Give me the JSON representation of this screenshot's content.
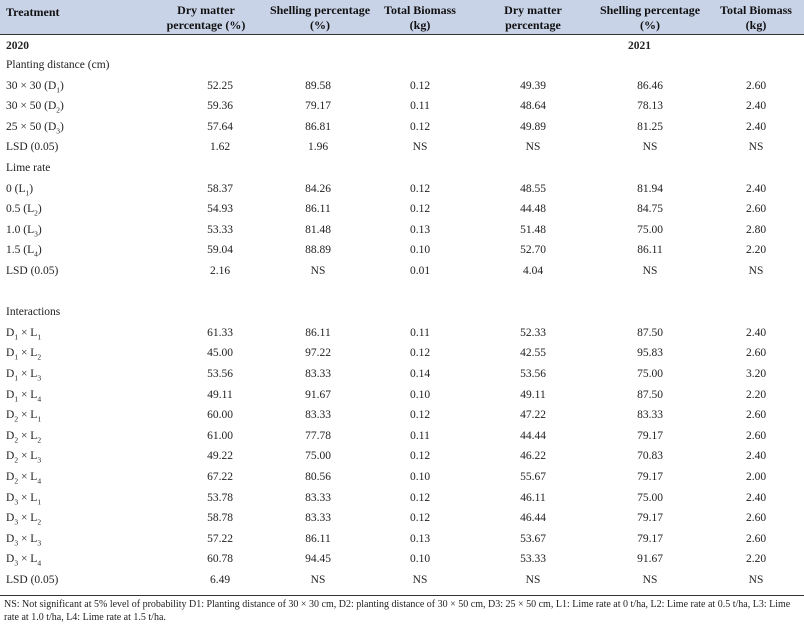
{
  "header": {
    "treatment": "Treatment",
    "dm1": "Dry matter percentage (%)",
    "sh1": "Shelling percentage (%)",
    "tb1": "Total  Biomass (kg)",
    "dm2": "Dry matter percentage",
    "sh2": "Shelling percentage (%)",
    "tb2": "Total Biomass (kg)"
  },
  "years": {
    "y1": "2020",
    "y2": "2021"
  },
  "rows": [
    {
      "type": "section",
      "label": "Planting distance (cm)"
    },
    {
      "label": "30 × 30 (D",
      "sub": "1",
      "tail": ")",
      "v": [
        "52.25",
        "89.58",
        "0.12",
        "49.39",
        "86.46",
        "2.60"
      ]
    },
    {
      "label": "30 × 50 (D",
      "sub": "2",
      "tail": ")",
      "v": [
        "59.36",
        "79.17",
        "0.11",
        "48.64",
        "78.13",
        "2.40"
      ]
    },
    {
      "label": "25 × 50 (D",
      "sub": "3",
      "tail": ")",
      "v": [
        "57.64",
        "86.81",
        "0.12",
        "49.89",
        "81.25",
        "2.40"
      ]
    },
    {
      "label": "LSD (0.05)",
      "v": [
        "1.62",
        "1.96",
        "NS",
        "NS",
        "NS",
        "NS"
      ]
    },
    {
      "type": "section",
      "label": "Lime rate"
    },
    {
      "label": "0 (L",
      "sub": "1",
      "tail": ")",
      "v": [
        "58.37",
        "84.26",
        "0.12",
        "48.55",
        "81.94",
        "2.40"
      ]
    },
    {
      "label": "0.5 (L",
      "sub": "2",
      "tail": ")",
      "v": [
        "54.93",
        "86.11",
        "0.12",
        "44.48",
        "84.75",
        "2.60"
      ]
    },
    {
      "label": "1.0 (L",
      "sub": "3",
      "tail": ")",
      "v": [
        "53.33",
        "81.48",
        "0.13",
        "51.48",
        "75.00",
        "2.80"
      ]
    },
    {
      "label": "1.5 (L",
      "sub": "4",
      "tail": ")",
      "v": [
        "59.04",
        "88.89",
        "0.10",
        "52.70",
        "86.11",
        "2.20"
      ]
    },
    {
      "label": "LSD (0.05)",
      "v": [
        "2.16",
        "NS",
        "0.01",
        "4.04",
        "NS",
        "NS"
      ]
    },
    {
      "type": "blank"
    },
    {
      "type": "section",
      "label": "Interactions"
    },
    {
      "label": "D",
      "sub": "1",
      "mid": " × L",
      "sub2": "1",
      "v": [
        "61.33",
        "86.11",
        "0.11",
        "52.33",
        "87.50",
        "2.40"
      ]
    },
    {
      "label": "D",
      "sub": "1",
      "mid": " × L",
      "sub2": "2",
      "v": [
        "45.00",
        "97.22",
        "0.12",
        "42.55",
        "95.83",
        "2.60"
      ]
    },
    {
      "label": "D",
      "sub": "1",
      "mid": " × L",
      "sub2": "3",
      "v": [
        "53.56",
        "83.33",
        "0.14",
        "53.56",
        "75.00",
        "3.20"
      ]
    },
    {
      "label": "D",
      "sub": "1",
      "mid": " × L",
      "sub2": "4",
      "v": [
        "49.11",
        "91.67",
        "0.10",
        "49.11",
        "87.50",
        "2.20"
      ]
    },
    {
      "label": "D",
      "sub": "2",
      "mid": " × L",
      "sub2": "1",
      "v": [
        "60.00",
        "83.33",
        "0.12",
        "47.22",
        "83.33",
        "2.60"
      ]
    },
    {
      "label": "D",
      "sub": "2",
      "mid": " × L",
      "sub2": "2",
      "v": [
        "61.00",
        "77.78",
        "0.11",
        "44.44",
        "79.17",
        "2.60"
      ]
    },
    {
      "label": "D",
      "sub": "2",
      "mid": " × L",
      "sub2": "3",
      "v": [
        "49.22",
        "75.00",
        "0.12",
        "46.22",
        "70.83",
        "2.40"
      ]
    },
    {
      "label": "D",
      "sub": "2",
      "mid": " × L",
      "sub2": "4",
      "v": [
        "67.22",
        "80.56",
        "0.10",
        "55.67",
        "79.17",
        "2.00"
      ]
    },
    {
      "label": "D",
      "sub": "3",
      "mid": " × L",
      "sub2": "1",
      "v": [
        "53.78",
        "83.33",
        "0.12",
        "46.11",
        "75.00",
        "2.40"
      ]
    },
    {
      "label": "D",
      "sub": "3",
      "mid": " × L",
      "sub2": "2",
      "v": [
        "58.78",
        "83.33",
        "0.12",
        "46.44",
        "79.17",
        "2.60"
      ]
    },
    {
      "label": "D",
      "sub": "3",
      "mid": " × L",
      "sub2": "3",
      "v": [
        "57.22",
        "86.11",
        "0.13",
        "53.67",
        "79.17",
        "2.60"
      ]
    },
    {
      "label": "D",
      "sub": "3",
      "mid": " × L",
      "sub2": "4",
      "v": [
        "60.78",
        "94.45",
        "0.10",
        "53.33",
        "91.67",
        "2.20"
      ]
    },
    {
      "label": "LSD (0.05)",
      "v": [
        "6.49",
        "NS",
        "NS",
        "NS",
        "NS",
        "NS"
      ]
    }
  ],
  "footnote": "NS: Not significant at 5% level of probability D1: Planting distance of 30 × 30 cm, D2: planting distance of 30 × 50 cm, D3: 25 × 50 cm, L1: Lime rate at 0 t/ha, L2: Lime rate at 0.5 t/ha, L3: Lime rate at 1.0 t/ha, L4: Lime rate at 1.5 t/ha."
}
